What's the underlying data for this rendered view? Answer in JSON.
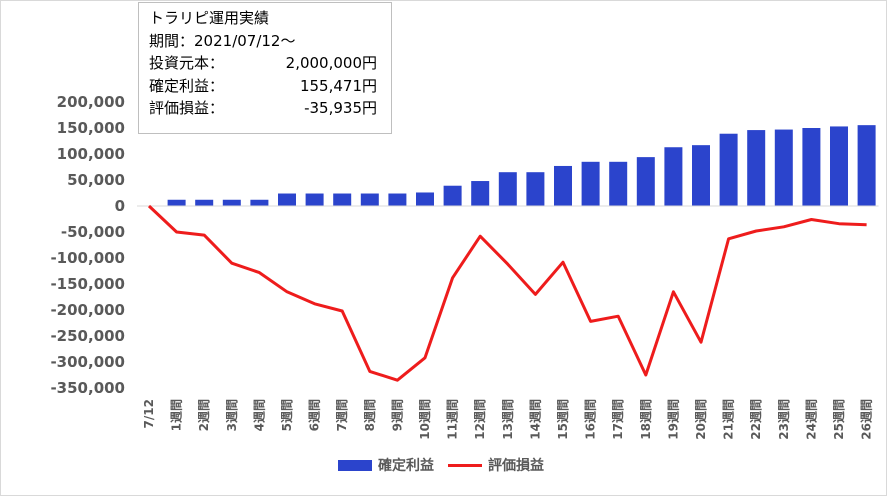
{
  "info_box": {
    "title": "トラリピ運用実績",
    "period_label": "期間：",
    "period_value": "2021/07/12～",
    "principal_label": "投資元本：",
    "principal_value": "2,000,000円",
    "profit_label": "確定利益：",
    "profit_value": "155,471円",
    "unrealized_label": "評価損益：",
    "unrealized_value": "-35,935円"
  },
  "legend": {
    "bar_label": "確定利益",
    "line_label": "評価損益"
  },
  "colors": {
    "bar": "#2b44cc",
    "line": "#ee1c1c",
    "tick_text": "#595959"
  },
  "chart_data": {
    "type": "bar+line",
    "categories": [
      "7/12",
      "1週間",
      "2週間",
      "3週間",
      "4週間",
      "5週間",
      "6週間",
      "7週間",
      "8週間",
      "9週間",
      "10週間",
      "11週間",
      "12週間",
      "13週間",
      "14週間",
      "15週間",
      "16週間",
      "17週間",
      "18週間",
      "19週間",
      "20週間",
      "21週間",
      "22週間",
      "23週間",
      "24週間",
      "25週間",
      "26週間"
    ],
    "series": [
      {
        "name": "確定利益",
        "type": "bar",
        "values": [
          0,
          12000,
          12000,
          12000,
          12000,
          24000,
          24000,
          24000,
          24000,
          24000,
          26000,
          39000,
          48000,
          65000,
          65000,
          77000,
          85000,
          85000,
          94000,
          113000,
          117000,
          139000,
          146000,
          147000,
          150000,
          153000,
          155471
        ]
      },
      {
        "name": "評価損益",
        "type": "line",
        "values": [
          0,
          -50000,
          -56000,
          -110000,
          -128000,
          -165000,
          -188000,
          -202000,
          -318000,
          -335000,
          -292000,
          -138000,
          -58000,
          -112000,
          -170000,
          -108000,
          -222000,
          -212000,
          -325000,
          -165000,
          -262000,
          -63000,
          -48000,
          -40000,
          -26000,
          -34000,
          -35935
        ]
      }
    ],
    "y_ticks": [
      "200,000",
      "150,000",
      "100,000",
      "50,000",
      "0",
      "-50,000",
      "-100,000",
      "-150,000",
      "-200,000",
      "-250,000",
      "-300,000",
      "-350,000"
    ],
    "ylim": [
      -350000,
      200000
    ],
    "grid": false,
    "legend_position": "bottom"
  }
}
